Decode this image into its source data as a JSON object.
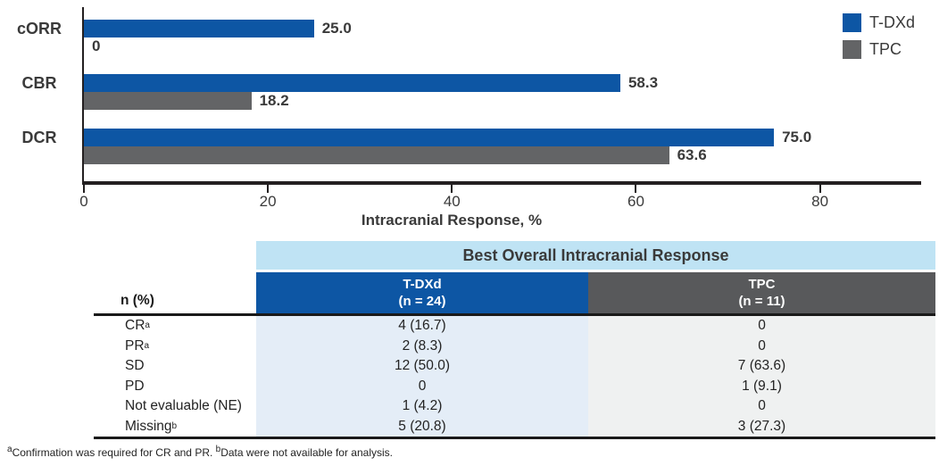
{
  "chart_data": {
    "type": "bar",
    "orientation": "horizontal",
    "title": "",
    "xlabel": "Intracranial Response, %",
    "categories": [
      "cORR",
      "CBR",
      "DCR"
    ],
    "series": [
      {
        "name": "T-DXd",
        "color": "#0d56a4",
        "values": [
          25.0,
          58.3,
          75.0
        ],
        "value_labels": [
          "25.0",
          "58.3",
          "75.0"
        ]
      },
      {
        "name": "TPC",
        "color": "#636466",
        "values": [
          0,
          18.2,
          63.6
        ],
        "value_labels": [
          "0",
          "18.2",
          "63.6"
        ]
      }
    ],
    "xticks": [
      0,
      20,
      40,
      60,
      80
    ],
    "xlim": [
      0,
      91
    ],
    "grid": false,
    "legend_position": "top-right"
  },
  "table": {
    "banner": "Best Overall Intracranial Response",
    "row_header": "n (%)",
    "columns": [
      {
        "line1": "T-DXd",
        "line2": "(n = 24)",
        "color": "#0d56a4"
      },
      {
        "line1": "TPC",
        "line2": "(n = 11)",
        "color": "#58595b"
      }
    ],
    "rows": [
      {
        "label": "CR",
        "sup": "a",
        "tdxd": "4 (16.7)",
        "tpc": "0"
      },
      {
        "label": "PR",
        "sup": "a",
        "tdxd": "2 (8.3)",
        "tpc": "0"
      },
      {
        "label": "SD",
        "sup": "",
        "tdxd": "12 (50.0)",
        "tpc": "7 (63.6)"
      },
      {
        "label": "PD",
        "sup": "",
        "tdxd": "0",
        "tpc": "1 (9.1)"
      },
      {
        "label": "Not evaluable (NE)",
        "sup": "",
        "tdxd": "1 (4.2)",
        "tpc": "0"
      },
      {
        "label": "Missing",
        "sup": "b",
        "tdxd": "5 (20.8)",
        "tpc": "3 (27.3)"
      }
    ]
  },
  "footnote": {
    "sup1": "a",
    "text1": "Confirmation was required for CR and PR. ",
    "sup2": "b",
    "text2": "Data were not available for analysis."
  },
  "colors": {
    "bar_blue": "#0d56a4",
    "bar_gray": "#636466",
    "banner_bg": "#bfe3f4",
    "body_blue_bg": "#e4edf7",
    "body_gray_bg": "#eff1f1",
    "axis_black": "#231f20",
    "text_dark": "#3a3a3a"
  }
}
